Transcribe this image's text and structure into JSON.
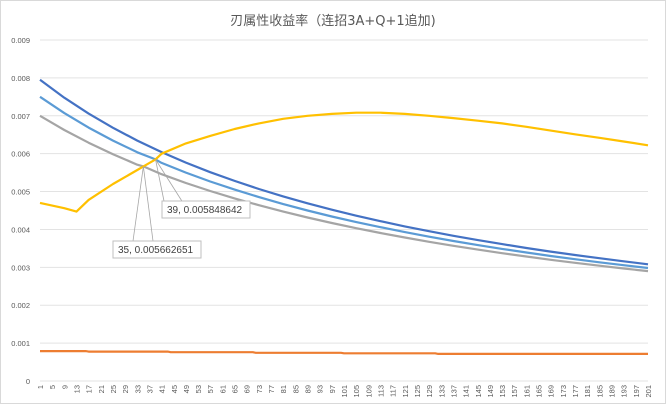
{
  "chart_data": {
    "type": "line",
    "title": "刃属性收益率（连招3A+Q+1追加)",
    "xlabel": "",
    "ylabel": "",
    "xlim": [
      1,
      201
    ],
    "ylim": [
      0,
      0.009
    ],
    "x_ticks": [
      1,
      5,
      9,
      13,
      17,
      21,
      25,
      29,
      33,
      37,
      41,
      45,
      49,
      53,
      57,
      61,
      65,
      69,
      73,
      77,
      81,
      85,
      89,
      93,
      97,
      101,
      105,
      109,
      113,
      117,
      121,
      125,
      129,
      133,
      137,
      141,
      145,
      149,
      153,
      157,
      161,
      165,
      169,
      173,
      177,
      181,
      185,
      189,
      193,
      197,
      201
    ],
    "y_ticks": [
      "0",
      "0.001",
      "0.002",
      "0.003",
      "0.004",
      "0.005",
      "0.006",
      "0.007",
      "0.008",
      "0.009"
    ],
    "grid": true,
    "legend": "none",
    "series": [
      {
        "color": "#4472c4",
        "points": [
          [
            1,
            0.00795
          ],
          [
            9,
            0.007477
          ],
          [
            17,
            0.007058
          ],
          [
            25,
            0.006683
          ],
          [
            33,
            0.006346
          ],
          [
            41,
            0.006041
          ],
          [
            49,
            0.005764
          ],
          [
            57,
            0.005512
          ],
          [
            65,
            0.00528
          ],
          [
            73,
            0.005068
          ],
          [
            81,
            0.004871
          ],
          [
            89,
            0.00469
          ],
          [
            97,
            0.004521
          ],
          [
            105,
            0.004364
          ],
          [
            113,
            0.004218
          ],
          [
            121,
            0.004081
          ],
          [
            129,
            0.003953
          ],
          [
            137,
            0.003832
          ],
          [
            145,
            0.003719
          ],
          [
            153,
            0.003612
          ],
          [
            161,
            0.003511
          ],
          [
            169,
            0.003416
          ],
          [
            177,
            0.003326
          ],
          [
            185,
            0.00324
          ],
          [
            193,
            0.003159
          ],
          [
            201,
            0.003081
          ]
        ]
      },
      {
        "color": "#5b9bd5",
        "points": [
          [
            1,
            0.0075
          ],
          [
            9,
            0.007071
          ],
          [
            17,
            0.006689
          ],
          [
            25,
            0.006346
          ],
          [
            33,
            0.006037
          ],
          [
            39,
            0.005848642
          ],
          [
            41,
            0.005756
          ],
          [
            49,
            0.0055
          ],
          [
            57,
            0.005266
          ],
          [
            65,
            0.005051
          ],
          [
            73,
            0.004853
          ],
          [
            81,
            0.00467
          ],
          [
            89,
            0.0045
          ],
          [
            97,
            0.004342
          ],
          [
            105,
            0.004195
          ],
          [
            113,
            0.004058
          ],
          [
            121,
            0.003929
          ],
          [
            129,
            0.003808
          ],
          [
            137,
            0.003694
          ],
          [
            145,
            0.003587
          ],
          [
            153,
            0.003486
          ],
          [
            161,
            0.003391
          ],
          [
            169,
            0.0033
          ],
          [
            177,
            0.003214
          ],
          [
            185,
            0.003133
          ],
          [
            193,
            0.003056
          ],
          [
            201,
            0.002982
          ]
        ]
      },
      {
        "color": "#a5a5a5",
        "points": [
          [
            1,
            0.007
          ],
          [
            9,
            0.006625
          ],
          [
            17,
            0.006289
          ],
          [
            25,
            0.005985
          ],
          [
            33,
            0.005708
          ],
          [
            35,
            0.005662651
          ],
          [
            41,
            0.005457
          ],
          [
            49,
            0.005226
          ],
          [
            57,
            0.005015
          ],
          [
            65,
            0.004819
          ],
          [
            73,
            0.004639
          ],
          [
            81,
            0.004471
          ],
          [
            89,
            0.004315
          ],
          [
            97,
            0.00417
          ],
          [
            105,
            0.004034
          ],
          [
            113,
            0.003907
          ],
          [
            121,
            0.003787
          ],
          [
            129,
            0.003675
          ],
          [
            137,
            0.003569
          ],
          [
            145,
            0.003469
          ],
          [
            153,
            0.003374
          ],
          [
            161,
            0.003285
          ],
          [
            169,
            0.0032
          ],
          [
            177,
            0.003119
          ],
          [
            185,
            0.003042
          ],
          [
            193,
            0.002969
          ],
          [
            201,
            0.0029
          ]
        ]
      },
      {
        "color": "#ffc000",
        "points": [
          [
            1,
            0.0047
          ],
          [
            9,
            0.00456
          ],
          [
            13,
            0.00447
          ],
          [
            17,
            0.00478
          ],
          [
            25,
            0.0052
          ],
          [
            33,
            0.00557
          ],
          [
            35,
            0.005662651
          ],
          [
            39,
            0.005848642
          ],
          [
            41,
            0.006
          ],
          [
            49,
            0.00627
          ],
          [
            57,
            0.00647
          ],
          [
            65,
            0.00665
          ],
          [
            73,
            0.0068
          ],
          [
            81,
            0.00692
          ],
          [
            89,
            0.007
          ],
          [
            97,
            0.00705
          ],
          [
            105,
            0.00708
          ],
          [
            113,
            0.00708
          ],
          [
            121,
            0.00705
          ],
          [
            129,
            0.007
          ],
          [
            137,
            0.00694
          ],
          [
            145,
            0.00687
          ],
          [
            153,
            0.0068
          ],
          [
            161,
            0.00671
          ],
          [
            169,
            0.00661
          ],
          [
            177,
            0.00651
          ],
          [
            185,
            0.00642
          ],
          [
            193,
            0.00632
          ],
          [
            201,
            0.00622
          ]
        ]
      },
      {
        "color": "#ed7d31",
        "points": [
          [
            1,
            0.00079
          ],
          [
            16,
            0.00079
          ],
          [
            17,
            0.000775
          ],
          [
            43,
            0.000775
          ],
          [
            44,
            0.00076
          ],
          [
            71,
            0.00076
          ],
          [
            72,
            0.000745
          ],
          [
            100,
            0.000745
          ],
          [
            101,
            0.00073
          ],
          [
            131,
            0.00073
          ],
          [
            132,
            0.000715
          ],
          [
            201,
            0.000715
          ]
        ]
      }
    ],
    "annotations": [
      {
        "text": "39, 0.005848642",
        "x": 39,
        "y": 0.005848642
      },
      {
        "text": "35, 0.005662651",
        "x": 35,
        "y": 0.005662651
      }
    ]
  }
}
